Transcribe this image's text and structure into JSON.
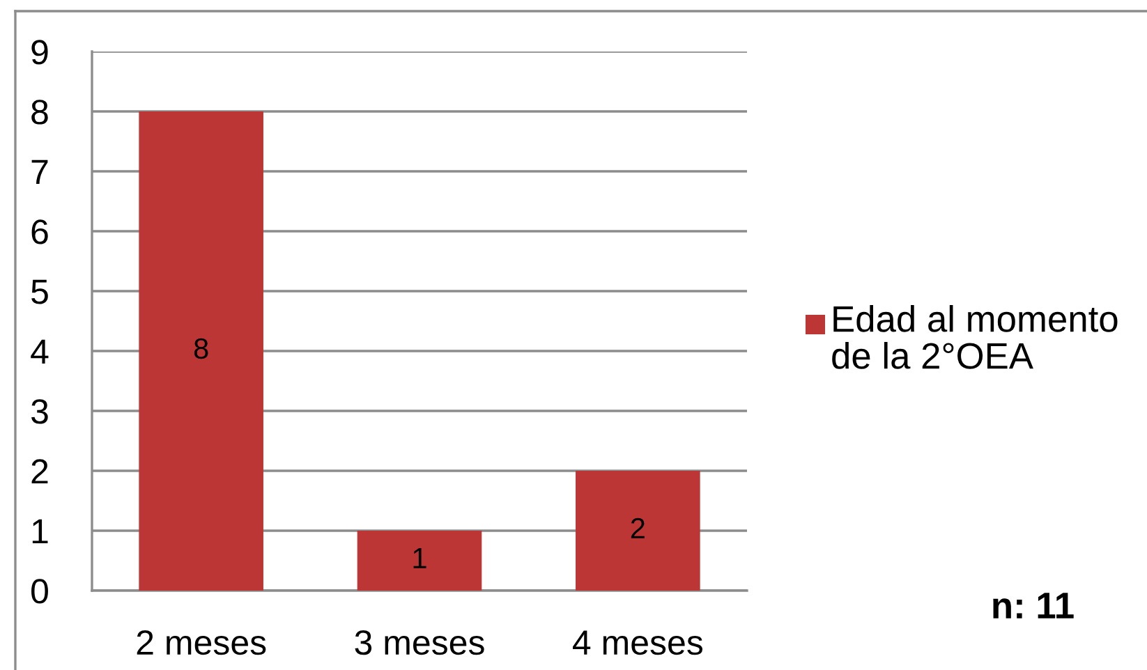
{
  "chart_data": {
    "type": "bar",
    "categories": [
      "2 meses",
      "3 meses",
      "4 meses"
    ],
    "series": [
      {
        "name": "Edad al momento de la 2°OEA",
        "color": "#bd3636",
        "values": [
          8,
          1,
          2
        ]
      }
    ],
    "ylim": [
      0,
      9
    ],
    "yticks": [
      0,
      1,
      2,
      3,
      4,
      5,
      6,
      7,
      8,
      9
    ],
    "grid": "y",
    "legend": "right",
    "data_labels": true,
    "annotations": [
      "n: 11"
    ]
  }
}
